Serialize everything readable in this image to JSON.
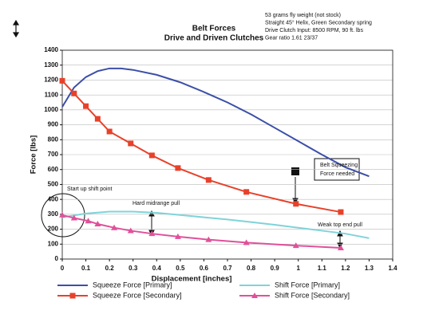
{
  "chart_data": {
    "type": "line",
    "title": "Belt Forces",
    "subtitle": "Drive and Driven Clutches",
    "notes": [
      "53 grams fly weight (not stock)",
      "Straight 45° Helix, Green Secondary spring",
      "Drive Clutch Input: 8500 RPM, 90 ft. lbs",
      "Gear ratio 1.61  23/37"
    ],
    "x_label": "Displacement [inches]",
    "y_label": "Force [lbs]",
    "xlim": [
      0,
      1.4
    ],
    "xticks": [
      0,
      0.1,
      0.2,
      0.3,
      0.4,
      0.5,
      0.6,
      0.7,
      0.8,
      0.9,
      1,
      1.1,
      1.2,
      1.3,
      1.4
    ],
    "ylim": [
      0,
      1400
    ],
    "yticks": [
      0,
      100,
      200,
      300,
      400,
      500,
      600,
      700,
      800,
      900,
      1000,
      1100,
      1200,
      1300,
      1400
    ],
    "grid": true,
    "annotations": [
      "Start up shift point",
      "Hard midrange pull",
      "Belt Squeezing",
      "Force needed",
      "Weak top end pull"
    ],
    "series": [
      {
        "name": "Squeeze Force  [Primary]",
        "color": "#3b4fa8",
        "marker": "none",
        "x": [
          0,
          0.05,
          0.1,
          0.15,
          0.2,
          0.25,
          0.3,
          0.4,
          0.5,
          0.6,
          0.7,
          0.8,
          0.9,
          1,
          1.1,
          1.2,
          1.3
        ],
        "values": [
          1020,
          1150,
          1220,
          1260,
          1278,
          1278,
          1268,
          1235,
          1185,
          1120,
          1050,
          970,
          880,
          790,
          700,
          615,
          555
        ]
      },
      {
        "name": "Squeeze Force [Secondary]",
        "color": "#e8412a",
        "marker": "square",
        "x": [
          0,
          0.05,
          0.1,
          0.15,
          0.2,
          0.29,
          0.38,
          0.49,
          0.62,
          0.78,
          0.99,
          1.18
        ],
        "values": [
          1195,
          1110,
          1025,
          940,
          855,
          775,
          695,
          610,
          530,
          450,
          370,
          315
        ]
      },
      {
        "name": "Shift Force [Primary]",
        "color": "#7fd3d9",
        "marker": "none",
        "x": [
          0,
          0.1,
          0.2,
          0.3,
          0.4,
          0.5,
          0.6,
          0.7,
          0.8,
          0.9,
          1,
          1.1,
          1.2,
          1.3
        ],
        "values": [
          280,
          305,
          318,
          318,
          310,
          295,
          280,
          265,
          248,
          230,
          210,
          190,
          170,
          140
        ]
      },
      {
        "name": "Shift Force [Secondary]",
        "color": "#e0509a",
        "marker": "triangle",
        "x": [
          0,
          0.05,
          0.11,
          0.15,
          0.22,
          0.29,
          0.38,
          0.49,
          0.62,
          0.78,
          0.99,
          1.18
        ],
        "values": [
          295,
          275,
          255,
          235,
          210,
          190,
          170,
          150,
          130,
          110,
          90,
          75
        ]
      }
    ]
  }
}
